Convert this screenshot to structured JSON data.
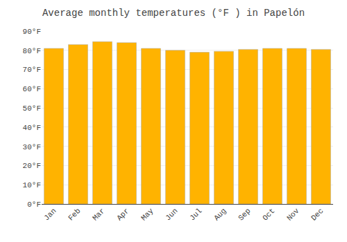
{
  "chart_data": {
    "type": "bar",
    "title": "Average monthly temperatures (°F ) in Papelón",
    "categories": [
      "Jan",
      "Feb",
      "Mar",
      "Apr",
      "May",
      "Jun",
      "Jul",
      "Aug",
      "Sep",
      "Oct",
      "Nov",
      "Dec"
    ],
    "values": [
      81,
      83,
      84.5,
      84,
      81,
      80,
      79,
      79.5,
      80.5,
      81,
      81,
      80.5
    ],
    "color": "#FFB300",
    "ylim": [
      0,
      90
    ],
    "yticks": [
      {
        "value": 0,
        "label": "0°F"
      },
      {
        "value": 10,
        "label": "10°F"
      },
      {
        "value": 20,
        "label": "20°F"
      },
      {
        "value": 30,
        "label": "30°F"
      },
      {
        "value": 40,
        "label": "40°F"
      },
      {
        "value": 50,
        "label": "50°F"
      },
      {
        "value": 60,
        "label": "60°F"
      },
      {
        "value": 70,
        "label": "70°F"
      },
      {
        "value": 80,
        "label": "80°F"
      },
      {
        "value": 90,
        "label": "90°F"
      }
    ],
    "grid": true
  }
}
